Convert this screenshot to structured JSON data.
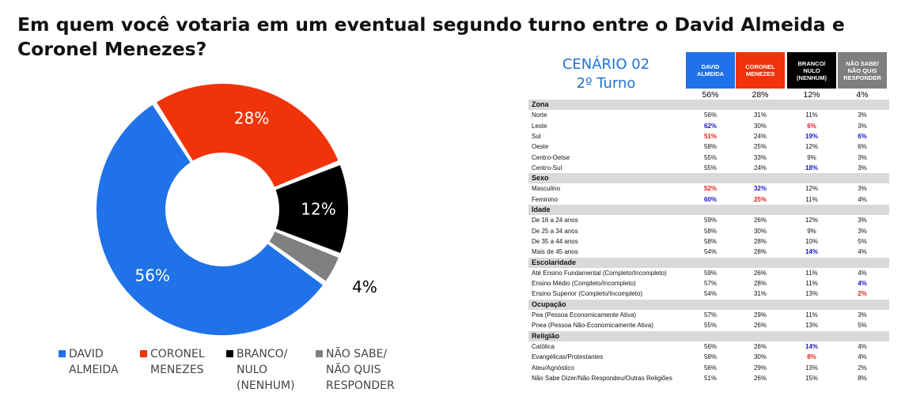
{
  "title": "Em quem você votaria em um eventual segundo turno entre o David Almeida e Coronel Menezes?",
  "chart_data": {
    "type": "pie",
    "donut": true,
    "slices": [
      {
        "name": "DAVID ALMEIDA",
        "value": 56,
        "label": "56%",
        "color": "#1f72e8"
      },
      {
        "name": "CORONEL MENEZES",
        "value": 28,
        "label": "28%",
        "color": "#f03309"
      },
      {
        "name": "BRANCO/ NULO (NENHUM)",
        "value": 12,
        "label": "12%",
        "color": "#000000"
      },
      {
        "name": "NÃO SABE/ NÃO QUIS RESPONDER",
        "value": 4,
        "label": "4%",
        "color": "#7f7f7f"
      }
    ],
    "legend_position": "bottom"
  },
  "legend": [
    {
      "text": "DAVID\nALMEIDA",
      "color": "#1f72e8"
    },
    {
      "text": "CORONEL\nMENEZES",
      "color": "#f03309"
    },
    {
      "text": "BRANCO/\nNULO\n(NENHUM)",
      "color": "#000000"
    },
    {
      "text": "NÃO SABE/\nNÃO QUIS\nRESPONDER",
      "color": "#7f7f7f"
    }
  ],
  "table": {
    "scenario": "CENÁRIO 02",
    "round": "2º Turno",
    "columns": [
      {
        "label": "DAVID\nALMEIDA",
        "color": "#1f72e8",
        "total": "56%"
      },
      {
        "label": "CORONEL\nMENEZES",
        "color": "#f03309",
        "total": "28%"
      },
      {
        "label": "BRANCO/\nNULO\n(NENHUM)",
        "color": "#000000",
        "total": "12%"
      },
      {
        "label": "NÃO SABE/\nNÃO QUIS\nRESPONDER",
        "color": "#7f7f7f",
        "total": "4%"
      }
    ],
    "rows": [
      {
        "type": "section",
        "label": "Zona"
      },
      {
        "label": "Norte",
        "values": [
          "56%",
          "31%",
          "11%",
          "3%"
        ]
      },
      {
        "label": "Leste",
        "values": [
          "62%",
          "30%",
          "6%",
          "3%"
        ],
        "hl": [
          "b",
          "",
          "r",
          ""
        ]
      },
      {
        "label": "Sul",
        "values": [
          "51%",
          "24%",
          "19%",
          "6%"
        ],
        "hl": [
          "r",
          "",
          "b",
          "b"
        ]
      },
      {
        "label": "Oeste",
        "values": [
          "58%",
          "25%",
          "12%",
          "6%"
        ]
      },
      {
        "label": "Centro-Oetse",
        "values": [
          "55%",
          "33%",
          "9%",
          "3%"
        ]
      },
      {
        "label": "Centro-Sul",
        "values": [
          "55%",
          "24%",
          "18%",
          "3%"
        ],
        "hl": [
          "",
          "",
          "b",
          ""
        ]
      },
      {
        "type": "section",
        "label": "Sexo"
      },
      {
        "label": "Masculino",
        "values": [
          "52%",
          "32%",
          "12%",
          "3%"
        ],
        "hl": [
          "r",
          "b",
          "",
          ""
        ]
      },
      {
        "label": "Feminino",
        "values": [
          "60%",
          "25%",
          "11%",
          "4%"
        ],
        "hl": [
          "b",
          "r",
          "",
          ""
        ]
      },
      {
        "type": "section",
        "label": "Idade"
      },
      {
        "label": "De 16 a 24 anos",
        "values": [
          "59%",
          "26%",
          "12%",
          "3%"
        ]
      },
      {
        "label": "De 25 a 34 anos",
        "values": [
          "58%",
          "30%",
          "9%",
          "3%"
        ]
      },
      {
        "label": "De 35 a 44 anos",
        "values": [
          "58%",
          "28%",
          "10%",
          "5%"
        ]
      },
      {
        "label": "Mais de 45 anos",
        "values": [
          "54%",
          "28%",
          "14%",
          "4%"
        ],
        "hl": [
          "",
          "",
          "b",
          ""
        ]
      },
      {
        "type": "section",
        "label": "Escolaridade"
      },
      {
        "label": "Até Ensino Fundamental (Completo/Incompleto)",
        "values": [
          "59%",
          "26%",
          "11%",
          "4%"
        ]
      },
      {
        "label": "Ensino Médio (Completo/Incompleto)",
        "values": [
          "57%",
          "28%",
          "11%",
          "4%"
        ],
        "hl": [
          "",
          "",
          "",
          "b"
        ]
      },
      {
        "label": "Ensino Superior (Completo/Incompleto)",
        "values": [
          "54%",
          "31%",
          "13%",
          "2%"
        ],
        "hl": [
          "",
          "",
          "",
          "r"
        ]
      },
      {
        "type": "section",
        "label": "Ocupação"
      },
      {
        "label": "Pea (Pessoa Economicamente Ativa)",
        "values": [
          "57%",
          "29%",
          "11%",
          "3%"
        ]
      },
      {
        "label": "Pnea (Pessoa Não-Economicamente Ativa)",
        "values": [
          "55%",
          "26%",
          "13%",
          "5%"
        ]
      },
      {
        "type": "section",
        "label": "Religião"
      },
      {
        "label": "Católica",
        "values": [
          "56%",
          "26%",
          "14%",
          "4%"
        ],
        "hl": [
          "",
          "",
          "b",
          ""
        ]
      },
      {
        "label": "Evangélicas/Protestantes",
        "values": [
          "58%",
          "30%",
          "8%",
          "4%"
        ],
        "hl": [
          "",
          "",
          "r",
          ""
        ]
      },
      {
        "label": "Ateu/Agnóstico",
        "values": [
          "56%",
          "29%",
          "13%",
          "2%"
        ]
      },
      {
        "label": "Não Sabe Dizer/Não Respondeu/Outras Religiões",
        "values": [
          "51%",
          "26%",
          "15%",
          "8%"
        ]
      }
    ]
  }
}
